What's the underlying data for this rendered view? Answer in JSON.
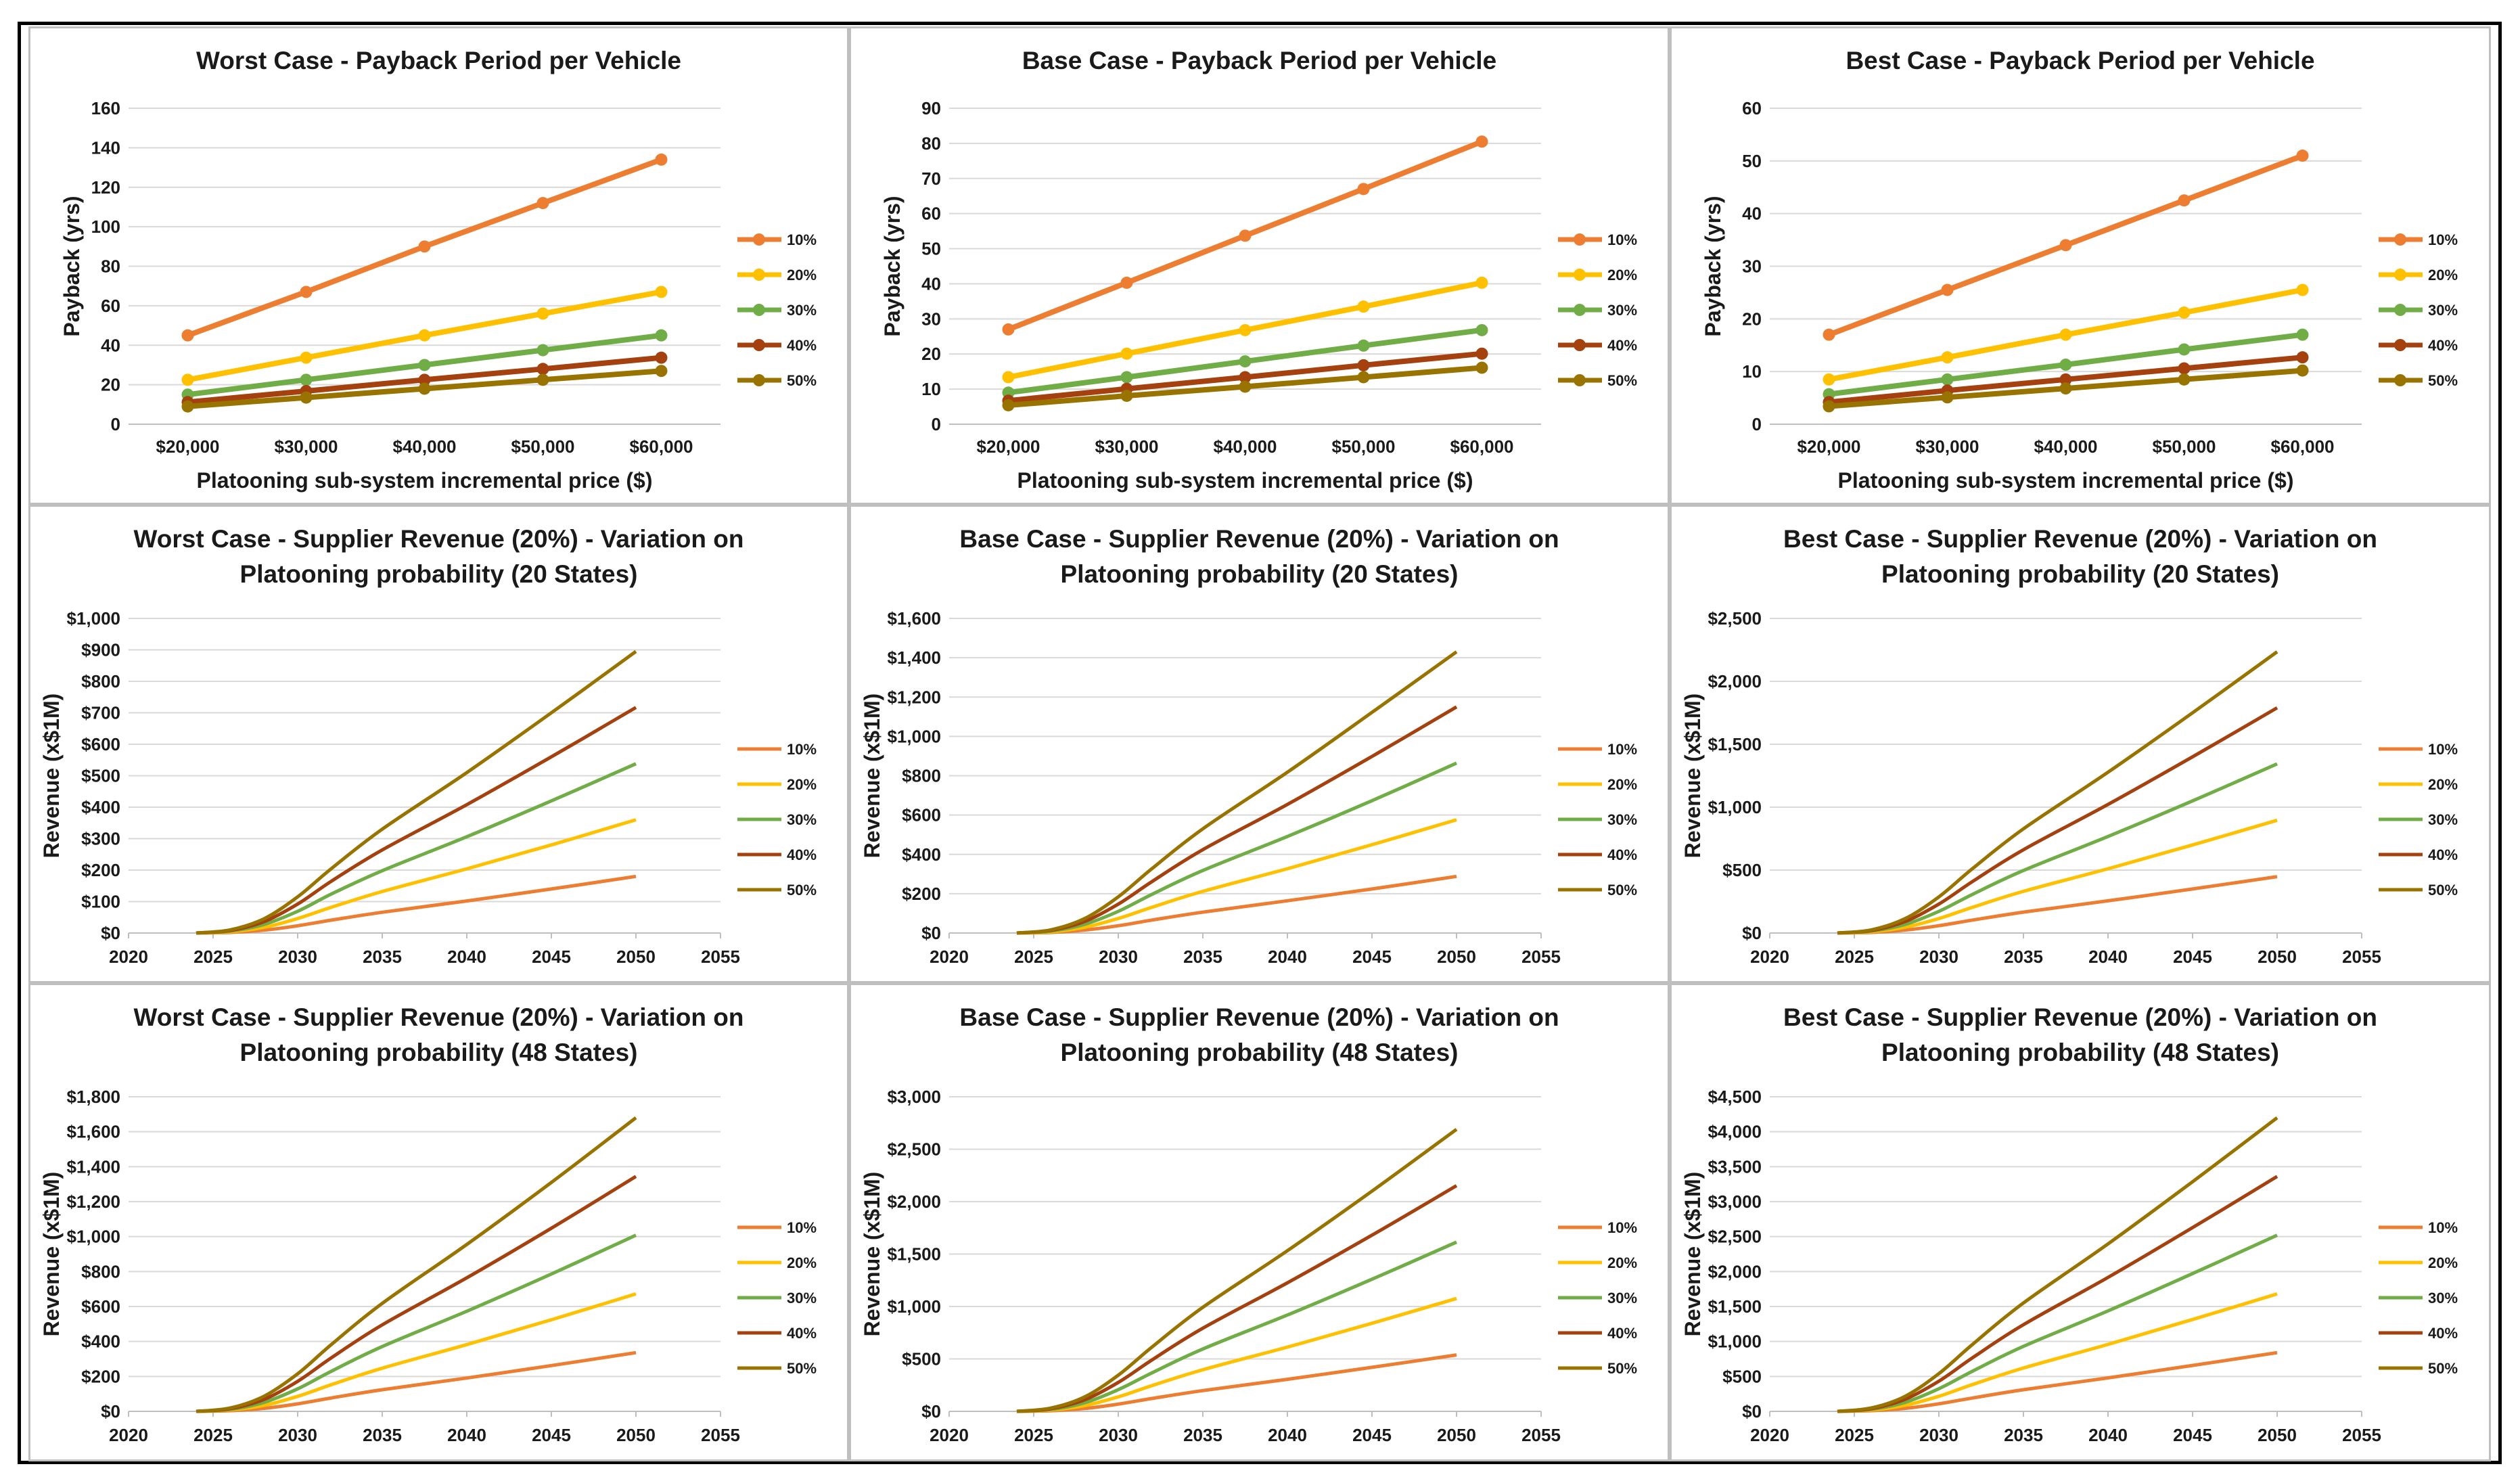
{
  "colors": {
    "10%": "#ED7D31",
    "20%": "#FFC000",
    "30%": "#70AD47",
    "40%": "#A5410E",
    "50%": "#997300"
  },
  "chart_data": [
    {
      "type": "line",
      "markers": true,
      "title_lines": [
        "Worst Case - Payback Period per Vehicle"
      ],
      "xlabel": "Platooning sub-system incremental price ($)",
      "ylabel": "Payback (yrs)",
      "categories": [
        "$20,000",
        "$30,000",
        "$40,000",
        "$50,000",
        "$60,000"
      ],
      "yticks": [
        "0",
        "20",
        "40",
        "60",
        "80",
        "100",
        "120",
        "140",
        "160"
      ],
      "ylim": [
        0,
        160
      ],
      "series": [
        {
          "name": "10%",
          "values": [
            45,
            67,
            90,
            112,
            134
          ]
        },
        {
          "name": "20%",
          "values": [
            22.5,
            33.7,
            45,
            56,
            67
          ]
        },
        {
          "name": "30%",
          "values": [
            15,
            22.5,
            30,
            37.5,
            45
          ]
        },
        {
          "name": "40%",
          "values": [
            11.2,
            16.8,
            22.5,
            28,
            33.7
          ]
        },
        {
          "name": "50%",
          "values": [
            9,
            13.5,
            18,
            22.5,
            27
          ]
        }
      ]
    },
    {
      "type": "line",
      "markers": true,
      "title_lines": [
        "Base Case - Payback Period per Vehicle"
      ],
      "xlabel": "Platooning sub-system incremental price ($)",
      "ylabel": "Payback (yrs)",
      "categories": [
        "$20,000",
        "$30,000",
        "$40,000",
        "$50,000",
        "$60,000"
      ],
      "yticks": [
        "0",
        "10",
        "20",
        "30",
        "40",
        "50",
        "60",
        "70",
        "80",
        "90"
      ],
      "ylim": [
        0,
        90
      ],
      "series": [
        {
          "name": "10%",
          "values": [
            27,
            40.3,
            53.7,
            67,
            80.5
          ]
        },
        {
          "name": "20%",
          "values": [
            13.4,
            20.1,
            26.8,
            33.5,
            40.3
          ]
        },
        {
          "name": "30%",
          "values": [
            9,
            13.4,
            17.9,
            22.4,
            26.8
          ]
        },
        {
          "name": "40%",
          "values": [
            6.7,
            10.1,
            13.4,
            16.8,
            20.1
          ]
        },
        {
          "name": "50%",
          "values": [
            5.4,
            8.1,
            10.7,
            13.4,
            16.1
          ]
        }
      ]
    },
    {
      "type": "line",
      "markers": true,
      "title_lines": [
        "Best Case - Payback Period per Vehicle"
      ],
      "xlabel": "Platooning sub-system incremental price ($)",
      "ylabel": "Payback (yrs)",
      "categories": [
        "$20,000",
        "$30,000",
        "$40,000",
        "$50,000",
        "$60,000"
      ],
      "yticks": [
        "0",
        "10",
        "20",
        "30",
        "40",
        "50",
        "60"
      ],
      "ylim": [
        0,
        60
      ],
      "series": [
        {
          "name": "10%",
          "values": [
            17,
            25.5,
            34,
            42.5,
            51
          ]
        },
        {
          "name": "20%",
          "values": [
            8.5,
            12.7,
            17,
            21.2,
            25.5
          ]
        },
        {
          "name": "30%",
          "values": [
            5.7,
            8.5,
            11.3,
            14.2,
            17
          ]
        },
        {
          "name": "40%",
          "values": [
            4.2,
            6.4,
            8.5,
            10.6,
            12.7
          ]
        },
        {
          "name": "50%",
          "values": [
            3.4,
            5.1,
            6.8,
            8.5,
            10.2
          ]
        }
      ]
    },
    {
      "type": "line",
      "markers": false,
      "title_lines": [
        "Worst Case - Supplier Revenue (20%) - Variation on",
        "Platooning probability (20 States)"
      ],
      "xlabel": "",
      "ylabel": "Revenue (x$1M)",
      "xticks": [
        "2020",
        "2025",
        "2030",
        "2035",
        "2040",
        "2045",
        "2050",
        "2055"
      ],
      "xlim": [
        2020,
        2055
      ],
      "yticks": [
        "$0",
        "$100",
        "$200",
        "$300",
        "$400",
        "$500",
        "$600",
        "$700",
        "$800",
        "$900",
        "$1,000"
      ],
      "ylim": [
        0,
        1000
      ],
      "x": [
        2024,
        2026,
        2028,
        2030,
        2032,
        2035,
        2040,
        2045,
        2050
      ],
      "series": [
        {
          "name": "10%",
          "values": [
            0,
            2,
            9,
            23,
            41,
            66,
            102,
            140,
            180
          ]
        },
        {
          "name": "20%",
          "values": [
            0,
            4,
            18,
            46,
            82,
            132,
            204,
            280,
            360
          ]
        },
        {
          "name": "30%",
          "values": [
            0,
            6,
            27,
            69,
            124,
            198,
            306,
            420,
            538
          ]
        },
        {
          "name": "40%",
          "values": [
            0,
            8,
            36,
            92,
            165,
            264,
            408,
            560,
            717
          ]
        },
        {
          "name": "50%",
          "values": [
            0,
            10,
            45,
            115,
            205,
            330,
            510,
            700,
            895
          ]
        }
      ]
    },
    {
      "type": "line",
      "markers": false,
      "title_lines": [
        "Base Case - Supplier Revenue (20%) - Variation on",
        "Platooning probability (20 States)"
      ],
      "xlabel": "",
      "ylabel": "Revenue (x$1M)",
      "xticks": [
        "2020",
        "2025",
        "2030",
        "2035",
        "2040",
        "2045",
        "2050",
        "2055"
      ],
      "xlim": [
        2020,
        2055
      ],
      "yticks": [
        "$0",
        "$200",
        "$400",
        "$600",
        "$800",
        "$1,000",
        "$1,200",
        "$1,400",
        "$1,600"
      ],
      "ylim": [
        0,
        1600
      ],
      "x": [
        2024,
        2026,
        2028,
        2030,
        2032,
        2035,
        2040,
        2045,
        2050
      ],
      "series": [
        {
          "name": "10%",
          "values": [
            0,
            3,
            15,
            37,
            66,
            106,
            164,
            224,
            288
          ]
        },
        {
          "name": "20%",
          "values": [
            0,
            6,
            29,
            74,
            131,
            212,
            327,
            449,
            576
          ]
        },
        {
          "name": "30%",
          "values": [
            0,
            10,
            44,
            110,
            197,
            318,
            491,
            673,
            864
          ]
        },
        {
          "name": "40%",
          "values": [
            0,
            13,
            58,
            147,
            262,
            424,
            654,
            898,
            1150
          ]
        },
        {
          "name": "50%",
          "values": [
            0,
            16,
            73,
            184,
            328,
            530,
            818,
            1122,
            1430
          ]
        }
      ]
    },
    {
      "type": "line",
      "markers": false,
      "title_lines": [
        "Best Case - Supplier Revenue (20%) - Variation on",
        "Platooning probability (20 States)"
      ],
      "xlabel": "",
      "ylabel": "Revenue (x$1M)",
      "xticks": [
        "2020",
        "2025",
        "2030",
        "2035",
        "2040",
        "2045",
        "2050",
        "2055"
      ],
      "xlim": [
        2020,
        2055
      ],
      "yticks": [
        "$0",
        "$500",
        "$1,000",
        "$1,500",
        "$2,000",
        "$2,500"
      ],
      "ylim": [
        0,
        2500
      ],
      "x": [
        2024,
        2026,
        2028,
        2030,
        2032,
        2035,
        2040,
        2045,
        2050
      ],
      "series": [
        {
          "name": "10%",
          "values": [
            0,
            5,
            23,
            58,
            103,
            166,
            256,
            350,
            448
          ]
        },
        {
          "name": "20%",
          "values": [
            0,
            10,
            46,
            115,
            205,
            331,
            511,
            700,
            896
          ]
        },
        {
          "name": "30%",
          "values": [
            0,
            15,
            68,
            172,
            308,
            497,
            767,
            1050,
            1344
          ]
        },
        {
          "name": "40%",
          "values": [
            0,
            20,
            91,
            230,
            410,
            662,
            1022,
            1400,
            1790
          ]
        },
        {
          "name": "50%",
          "values": [
            0,
            25,
            114,
            287,
            513,
            828,
            1278,
            1750,
            2235
          ]
        }
      ]
    },
    {
      "type": "line",
      "markers": false,
      "title_lines": [
        "Worst Case - Supplier Revenue (20%) - Variation on",
        "Platooning probability (48 States)"
      ],
      "xlabel": "",
      "ylabel": "Revenue (x$1M)",
      "xticks": [
        "2020",
        "2025",
        "2030",
        "2035",
        "2040",
        "2045",
        "2050",
        "2055"
      ],
      "xlim": [
        2020,
        2055
      ],
      "yticks": [
        "$0",
        "$200",
        "$400",
        "$600",
        "$800",
        "$1,000",
        "$1,200",
        "$1,400",
        "$1,600",
        "$1,800"
      ],
      "ylim": [
        0,
        1800
      ],
      "x": [
        2024,
        2026,
        2028,
        2030,
        2032,
        2035,
        2040,
        2045,
        2050
      ],
      "series": [
        {
          "name": "10%",
          "values": [
            0,
            4,
            17,
            43,
            77,
            124,
            191,
            262,
            336
          ]
        },
        {
          "name": "20%",
          "values": [
            0,
            8,
            34,
            86,
            153,
            247,
            382,
            524,
            672
          ]
        },
        {
          "name": "30%",
          "values": [
            0,
            11,
            51,
            129,
            230,
            371,
            573,
            786,
            1008
          ]
        },
        {
          "name": "40%",
          "values": [
            0,
            15,
            68,
            172,
            307,
            495,
            764,
            1048,
            1344
          ]
        },
        {
          "name": "50%",
          "values": [
            0,
            19,
            86,
            215,
            383,
            618,
            955,
            1310,
            1680
          ]
        }
      ]
    },
    {
      "type": "line",
      "markers": false,
      "title_lines": [
        "Base Case - Supplier Revenue (20%) - Variation on",
        "Platooning probability (48 States)"
      ],
      "xlabel": "",
      "ylabel": "Revenue (x$1M)",
      "xticks": [
        "2020",
        "2025",
        "2030",
        "2035",
        "2040",
        "2045",
        "2050",
        "2055"
      ],
      "xlim": [
        2020,
        2055
      ],
      "yticks": [
        "$0",
        "$500",
        "$1,000",
        "$1,500",
        "$2,000",
        "$2,500",
        "$3,000"
      ],
      "ylim": [
        0,
        3000
      ],
      "x": [
        2024,
        2026,
        2028,
        2030,
        2032,
        2035,
        2040,
        2045,
        2050
      ],
      "series": [
        {
          "name": "10%",
          "values": [
            0,
            6,
            27,
            69,
            123,
            198,
            306,
            420,
            538
          ]
        },
        {
          "name": "20%",
          "values": [
            0,
            12,
            55,
            138,
            246,
            397,
            613,
            840,
            1076
          ]
        },
        {
          "name": "30%",
          "values": [
            0,
            18,
            82,
            207,
            368,
            595,
            919,
            1260,
            1614
          ]
        },
        {
          "name": "40%",
          "values": [
            0,
            25,
            110,
            276,
            491,
            793,
            1226,
            1680,
            2152
          ]
        },
        {
          "name": "50%",
          "values": [
            0,
            31,
            137,
            345,
            614,
            992,
            1532,
            2100,
            2690
          ]
        }
      ]
    },
    {
      "type": "line",
      "markers": false,
      "title_lines": [
        "Best Case - Supplier Revenue (20%) - Variation on",
        "Platooning probability (48 States)"
      ],
      "xlabel": "",
      "ylabel": "Revenue (x$1M)",
      "xticks": [
        "2020",
        "2025",
        "2030",
        "2035",
        "2040",
        "2045",
        "2050",
        "2055"
      ],
      "xlim": [
        2020,
        2055
      ],
      "yticks": [
        "$0",
        "$500",
        "$1,000",
        "$1,500",
        "$2,000",
        "$2,500",
        "$3,000",
        "$3,500",
        "$4,000",
        "$4,500"
      ],
      "ylim": [
        0,
        4500
      ],
      "x": [
        2024,
        2026,
        2028,
        2030,
        2032,
        2035,
        2040,
        2045,
        2050
      ],
      "series": [
        {
          "name": "10%",
          "values": [
            0,
            10,
            43,
            108,
            192,
            310,
            479,
            657,
            840
          ]
        },
        {
          "name": "20%",
          "values": [
            0,
            19,
            86,
            216,
            384,
            620,
            958,
            1314,
            1680
          ]
        },
        {
          "name": "30%",
          "values": [
            0,
            29,
            129,
            324,
            576,
            930,
            1437,
            1971,
            2520
          ]
        },
        {
          "name": "40%",
          "values": [
            0,
            38,
            172,
            432,
            768,
            1240,
            1916,
            2628,
            3360
          ]
        },
        {
          "name": "50%",
          "values": [
            0,
            48,
            215,
            540,
            960,
            1550,
            2395,
            3285,
            4200
          ]
        }
      ]
    }
  ]
}
